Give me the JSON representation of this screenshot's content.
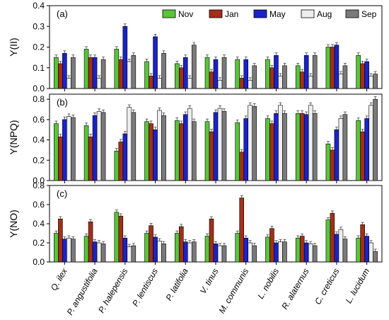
{
  "chart_data": {
    "type": "bar",
    "categories": [
      "Q. ilex",
      "P. angustifolia",
      "P. halepensis",
      "P. lentiscus",
      "P. latifolia",
      "V. tinus",
      "M. communis",
      "L. nobilis",
      "R. alaternus",
      "C. creticus",
      "L. lucidum"
    ],
    "legend": {
      "placement": "top-right",
      "entries": [
        "Nov",
        "Jan",
        "May",
        "Aug",
        "Sep"
      ],
      "colors": [
        "#5ac43a",
        "#a0301a",
        "#1a22c8",
        "#eeeeee",
        "#7a7a7a"
      ]
    },
    "panels": [
      {
        "label": "(a)",
        "ylabel": "Y(II)",
        "ylim": [
          0,
          0.4
        ],
        "yticks": [
          "0.0",
          "0.1",
          "0.2",
          "0.3",
          "0.4"
        ],
        "series": [
          {
            "name": "Nov",
            "values": [
              0.15,
              0.19,
              0.19,
              0.13,
              0.12,
              0.15,
              0.14,
              0.14,
              0.11,
              0.2,
              0.16
            ]
          },
          {
            "name": "Jan",
            "values": [
              0.12,
              0.15,
              0.14,
              0.06,
              0.1,
              0.08,
              0.05,
              0.1,
              0.08,
              0.2,
              0.12
            ]
          },
          {
            "name": "May",
            "values": [
              0.17,
              0.15,
              0.3,
              0.25,
              0.15,
              0.14,
              0.14,
              0.16,
              0.16,
              0.21,
              0.13
            ]
          },
          {
            "name": "Aug",
            "values": [
              0.05,
              0.05,
              0.13,
              0.05,
              0.05,
              0.04,
              0.04,
              0.06,
              0.06,
              0.07,
              0.06
            ]
          },
          {
            "name": "Sep",
            "values": [
              0.15,
              0.14,
              0.16,
              0.17,
              0.21,
              0.15,
              0.11,
              0.11,
              0.16,
              0.11,
              0.07
            ]
          }
        ]
      },
      {
        "label": "(b)",
        "ylabel": "Y(NPQ)",
        "ylim": [
          0,
          0.85
        ],
        "yticks": [
          "0.0",
          "0.2",
          "0.4",
          "0.6",
          "0.8"
        ],
        "series": [
          {
            "name": "Nov",
            "values": [
              0.56,
              0.54,
              0.29,
              0.58,
              0.59,
              0.58,
              0.57,
              0.61,
              0.66,
              0.36,
              0.59
            ]
          },
          {
            "name": "Jan",
            "values": [
              0.43,
              0.43,
              0.38,
              0.56,
              0.56,
              0.48,
              0.28,
              0.56,
              0.66,
              0.3,
              0.48
            ]
          },
          {
            "name": "May",
            "values": [
              0.6,
              0.64,
              0.46,
              0.5,
              0.65,
              0.67,
              0.61,
              0.66,
              0.65,
              0.5,
              0.61
            ]
          },
          {
            "name": "Aug",
            "values": [
              0.63,
              0.68,
              0.72,
              0.69,
              0.71,
              0.71,
              0.74,
              0.74,
              0.74,
              0.61,
              0.74
            ]
          },
          {
            "name": "Sep",
            "values": [
              0.62,
              0.67,
              0.67,
              0.64,
              0.58,
              0.68,
              0.73,
              0.66,
              0.66,
              0.65,
              0.8
            ]
          }
        ]
      },
      {
        "label": "(c)",
        "ylabel": "Y(NO)",
        "ylim": [
          0,
          0.8
        ],
        "yticks": [
          "0.0",
          "0.2",
          "0.4",
          "0.6",
          "0.8"
        ],
        "series": [
          {
            "name": "Nov",
            "values": [
              0.3,
              0.27,
              0.52,
              0.3,
              0.3,
              0.27,
              0.3,
              0.26,
              0.25,
              0.44,
              0.25
            ]
          },
          {
            "name": "Jan",
            "values": [
              0.45,
              0.42,
              0.48,
              0.38,
              0.37,
              0.45,
              0.67,
              0.35,
              0.27,
              0.51,
              0.39
            ]
          },
          {
            "name": "May",
            "values": [
              0.24,
              0.21,
              0.25,
              0.26,
              0.21,
              0.19,
              0.25,
              0.2,
              0.2,
              0.29,
              0.27
            ]
          },
          {
            "name": "Aug",
            "values": [
              0.25,
              0.2,
              0.16,
              0.22,
              0.2,
              0.17,
              0.2,
              0.21,
              0.19,
              0.34,
              0.2
            ]
          },
          {
            "name": "Sep",
            "values": [
              0.24,
              0.19,
              0.17,
              0.19,
              0.21,
              0.17,
              0.17,
              0.21,
              0.17,
              0.24,
              0.11
            ]
          }
        ]
      }
    ]
  }
}
